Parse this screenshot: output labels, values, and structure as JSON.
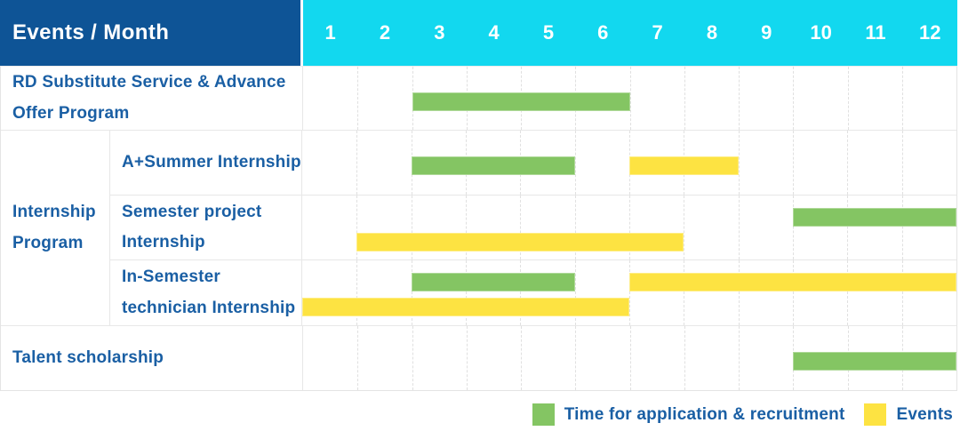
{
  "header": {
    "title": "Events / Month",
    "months": [
      "1",
      "2",
      "3",
      "4",
      "5",
      "6",
      "7",
      "8",
      "9",
      "10",
      "11",
      "12"
    ]
  },
  "colors": {
    "header_bg": "#0E5496",
    "months_bg": "#12D8EF",
    "label_text": "#1A5FA4",
    "green": "#84C563",
    "yellow": "#FDE342",
    "grid_line": "#E0E0E0"
  },
  "legend": {
    "items": [
      {
        "color": "green",
        "label": "Time for application & recruitment"
      },
      {
        "color": "yellow",
        "label": "Events"
      }
    ]
  },
  "chart_data": {
    "type": "table",
    "subtype": "gantt",
    "title": "Events / Month",
    "x_categories": [
      1,
      2,
      3,
      4,
      5,
      6,
      7,
      8,
      9,
      10,
      11,
      12
    ],
    "x_range": [
      1,
      12
    ],
    "grid": "dashed-vertical-month-lines",
    "legend_position": "bottom-right",
    "series_meaning": {
      "green": "Time for application & recruitment",
      "yellow": "Events"
    },
    "rows": [
      {
        "group": "",
        "label": "RD Substitute Service & Advance Offer Program",
        "bars": [
          {
            "color": "green",
            "months": [
              3,
              6
            ],
            "lane": "mid"
          }
        ]
      },
      {
        "group": "Internship Program",
        "label": "A+Summer Internship",
        "bars": [
          {
            "color": "green",
            "months": [
              3,
              5
            ],
            "lane": "mid"
          },
          {
            "color": "yellow",
            "months": [
              7,
              8
            ],
            "lane": "mid"
          }
        ]
      },
      {
        "group": "Internship Program",
        "label": "Semester project Internship",
        "bars": [
          {
            "color": "green",
            "months": [
              10,
              12
            ],
            "lane": "top"
          },
          {
            "color": "yellow",
            "months": [
              2,
              7
            ],
            "lane": "bottom"
          }
        ]
      },
      {
        "group": "Internship Program",
        "label": "In-Semester technician Internship",
        "bars": [
          {
            "color": "green",
            "months": [
              3,
              5
            ],
            "lane": "top"
          },
          {
            "color": "yellow",
            "months": [
              7,
              12
            ],
            "lane": "top"
          },
          {
            "color": "yellow",
            "months": [
              1,
              6
            ],
            "lane": "bottom"
          }
        ]
      },
      {
        "group": "",
        "label": "Talent scholarship",
        "bars": [
          {
            "color": "green",
            "months": [
              10,
              12
            ],
            "lane": "mid"
          }
        ]
      }
    ]
  }
}
